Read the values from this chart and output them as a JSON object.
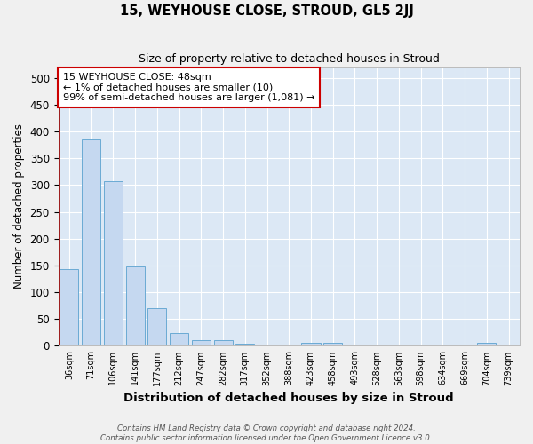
{
  "title": "15, WEYHOUSE CLOSE, STROUD, GL5 2JJ",
  "subtitle": "Size of property relative to detached houses in Stroud",
  "xlabel": "Distribution of detached houses by size in Stroud",
  "ylabel": "Number of detached properties",
  "footnote1": "Contains HM Land Registry data © Crown copyright and database right 2024.",
  "footnote2": "Contains public sector information licensed under the Open Government Licence v3.0.",
  "categories": [
    "36sqm",
    "71sqm",
    "106sqm",
    "141sqm",
    "177sqm",
    "212sqm",
    "247sqm",
    "282sqm",
    "317sqm",
    "352sqm",
    "388sqm",
    "423sqm",
    "458sqm",
    "493sqm",
    "528sqm",
    "563sqm",
    "598sqm",
    "634sqm",
    "669sqm",
    "704sqm",
    "739sqm"
  ],
  "values": [
    143,
    385,
    308,
    148,
    71,
    24,
    10,
    10,
    4,
    0,
    0,
    5,
    5,
    0,
    0,
    0,
    0,
    0,
    0,
    5,
    0
  ],
  "bar_color": "#c5d8f0",
  "bar_edge_color": "#6aaad4",
  "bg_color": "#dce8f5",
  "grid_color": "#ffffff",
  "vline_color": "#990000",
  "annotation_text": "15 WEYHOUSE CLOSE: 48sqm\n← 1% of detached houses are smaller (10)\n99% of semi-detached houses are larger (1,081) →",
  "annotation_box_color": "#ffffff",
  "annotation_box_edge": "#cc0000",
  "ylim": [
    0,
    520
  ],
  "yticks": [
    0,
    50,
    100,
    150,
    200,
    250,
    300,
    350,
    400,
    450,
    500
  ],
  "fig_bg": "#f0f0f0"
}
